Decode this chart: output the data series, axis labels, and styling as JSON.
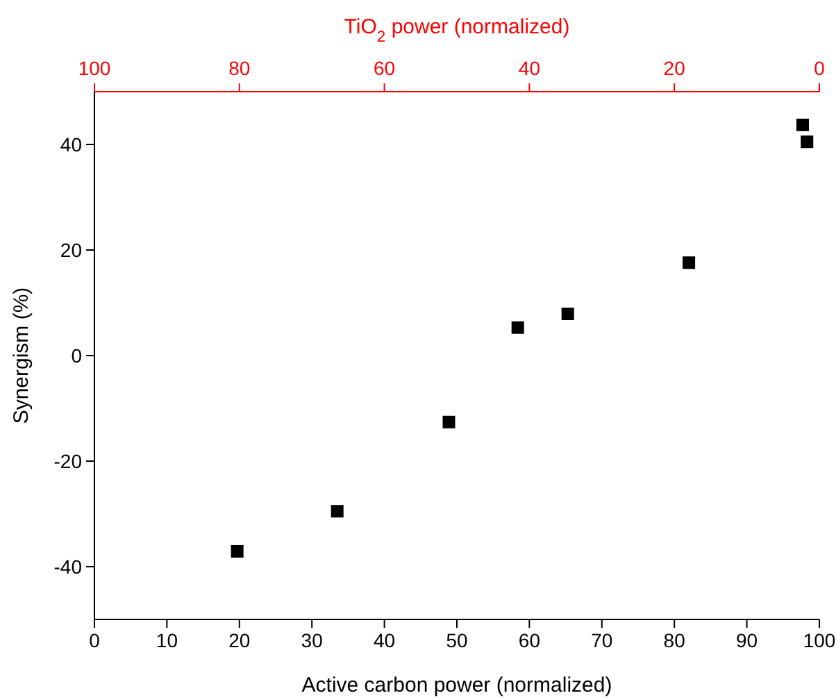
{
  "chart_data": {
    "type": "scatter",
    "xlabel": "Active carbon power (normalized)",
    "ylabel": "Synergism (%)",
    "x2label": "TiO$_{2}$ power (normalized)",
    "x": [
      19.7,
      33.5,
      48.9,
      58.4,
      65.3,
      82.0,
      97.7,
      98.3
    ],
    "values": [
      -37.1,
      -29.5,
      -12.6,
      5.3,
      7.9,
      17.6,
      43.7,
      40.5
    ],
    "color": "#000000",
    "marker": "square",
    "grid": false,
    "xlim": [
      0,
      100
    ],
    "xticks": [
      0,
      10,
      20,
      30,
      40,
      50,
      60,
      70,
      80,
      90,
      100
    ],
    "x2lim": [
      100,
      0
    ],
    "x2ticks": [
      100,
      80,
      60,
      40,
      20,
      0
    ],
    "ylim": [
      -50,
      50
    ],
    "yticks": [
      -40,
      -20,
      0,
      20,
      40
    ]
  }
}
